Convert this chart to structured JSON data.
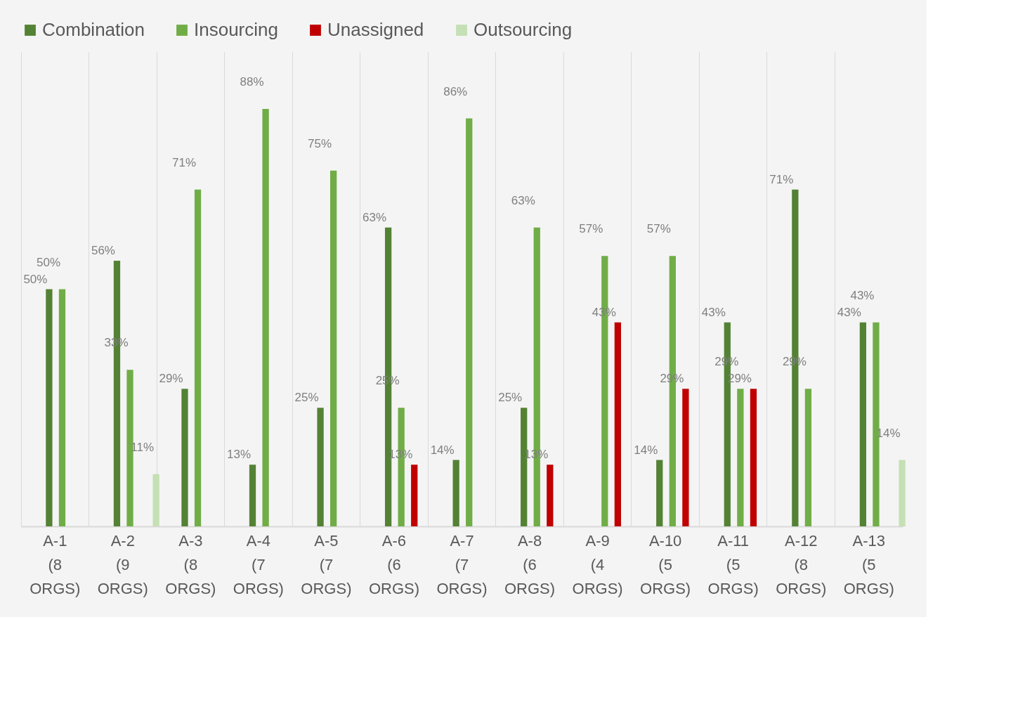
{
  "chart_data": {
    "type": "bar",
    "categories": [
      "A-1 (8 ORGS)",
      "A-2 (9 ORGS)",
      "A-3 (8 ORGS)",
      "A-4 (7 ORGS)",
      "A-5 (7 ORGS)",
      "A-6 (6 ORGS)",
      "A-7 (7 ORGS)",
      "A-8 (6 ORGS)",
      "A-9 (4 ORGS)",
      "A-10 (5 ORGS)",
      "A-11 (5 ORGS)",
      "A-12 (8 ORGS)",
      "A-13 (5 ORGS)"
    ],
    "series": [
      {
        "name": "Combination",
        "color": "#548235",
        "values": [
          50,
          56,
          29,
          13,
          25,
          63,
          14,
          25,
          null,
          14,
          43,
          71,
          43
        ],
        "value_labels": [
          "50%",
          "56%",
          "29%",
          "13%",
          "25%",
          "63%",
          "14%",
          "25%",
          null,
          "14%",
          "43%",
          "71%",
          "43%"
        ]
      },
      {
        "name": "Insourcing",
        "color": "#70ad47",
        "values": [
          50,
          33,
          71,
          88,
          75,
          25,
          86,
          63,
          57,
          57,
          29,
          29,
          43
        ],
        "value_labels": [
          "50%",
          "33%",
          "71%",
          "88%",
          "75%",
          "25%",
          "86%",
          "63%",
          "57%",
          "57%",
          "29%",
          "29%",
          "43%"
        ]
      },
      {
        "name": "Unassigned",
        "color": "#c00000",
        "values": [
          null,
          null,
          null,
          null,
          null,
          13,
          null,
          13,
          43,
          29,
          29,
          null,
          null
        ],
        "value_labels": [
          null,
          null,
          null,
          null,
          null,
          "13%",
          null,
          "13%",
          "43%",
          "29%",
          "29%",
          null,
          null
        ]
      },
      {
        "name": "Outsourcing",
        "color": "#c5e0b4",
        "values": [
          null,
          11,
          null,
          null,
          null,
          null,
          null,
          null,
          null,
          null,
          null,
          null,
          14
        ],
        "value_labels": [
          null,
          "11%",
          null,
          null,
          null,
          null,
          null,
          null,
          null,
          null,
          null,
          null,
          "14%"
        ]
      }
    ],
    "ylim": [
      0,
      100
    ],
    "grid": "x",
    "legend": "top"
  }
}
